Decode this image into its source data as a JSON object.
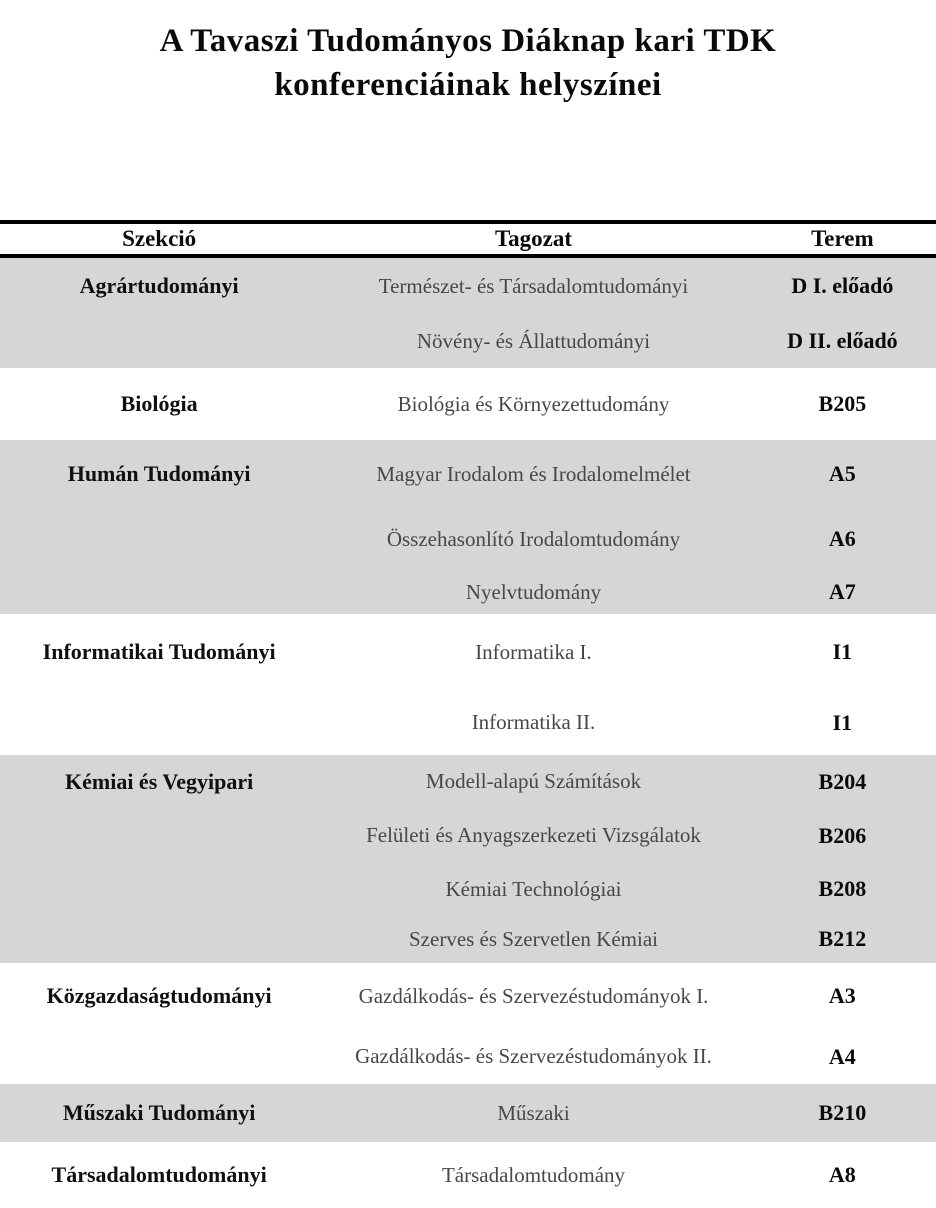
{
  "page": {
    "title_line1": "A Tavaszi Tudományos Diáknap kari TDK",
    "title_line2": "konferenciáinak helyszínei"
  },
  "table": {
    "headers": {
      "szekcio": "Szekció",
      "tagozat": "Tagozat",
      "terem": "Terem"
    },
    "colors": {
      "shaded_bg": "#d6d6d6",
      "rule": "#000000",
      "tagozat_text": "#474747"
    },
    "sections": [
      {
        "szekcio": "Agrártudományi",
        "shaded": true,
        "rows": [
          {
            "tagozat": "Természet- és Társadalomtudományi",
            "terem": "D I. előadó"
          },
          {
            "tagozat": "Növény- és Állattudományi",
            "terem": "D II. előadó"
          }
        ]
      },
      {
        "szekcio": "Biológia",
        "shaded": false,
        "rows": [
          {
            "tagozat": "Biológia és Környezettudomány",
            "terem": "B205"
          }
        ]
      },
      {
        "szekcio": "Humán Tudományi",
        "shaded": true,
        "rows": [
          {
            "tagozat": "Magyar Irodalom és Irodalomelmélet",
            "terem": "A5"
          },
          {
            "tagozat": "Összehasonlító Irodalomtudomány",
            "terem": "A6"
          },
          {
            "tagozat": "Nyelvtudomány",
            "terem": "A7"
          }
        ]
      },
      {
        "szekcio": "Informatikai Tudományi",
        "shaded": false,
        "rows": [
          {
            "tagozat": "Informatika I.",
            "terem": "I1"
          },
          {
            "tagozat": "Informatika II.",
            "terem": "I1"
          }
        ]
      },
      {
        "szekcio": "Kémiai és Vegyipari",
        "shaded": true,
        "rows": [
          {
            "tagozat": "Modell-alapú Számítások",
            "terem": "B204"
          },
          {
            "tagozat": "Felületi és Anyagszerkezeti Vizsgálatok",
            "terem": "B206"
          },
          {
            "tagozat": "Kémiai Technológiai",
            "terem": "B208"
          },
          {
            "tagozat": "Szerves és Szervetlen Kémiai",
            "terem": "B212"
          }
        ]
      },
      {
        "szekcio": "Közgazdaságtudományi",
        "shaded": false,
        "rows": [
          {
            "tagozat": "Gazdálkodás- és Szervezéstudományok I.",
            "terem": "A3"
          },
          {
            "tagozat": "Gazdálkodás- és Szervezéstudományok II.",
            "terem": "A4"
          }
        ]
      },
      {
        "szekcio": "Műszaki Tudományi",
        "shaded": true,
        "rows": [
          {
            "tagozat": "Műszaki",
            "terem": "B210"
          }
        ]
      },
      {
        "szekcio": "Társadalomtudományi",
        "shaded": false,
        "rows": [
          {
            "tagozat": "Társadalomtudomány",
            "terem": "A8"
          }
        ]
      }
    ]
  }
}
